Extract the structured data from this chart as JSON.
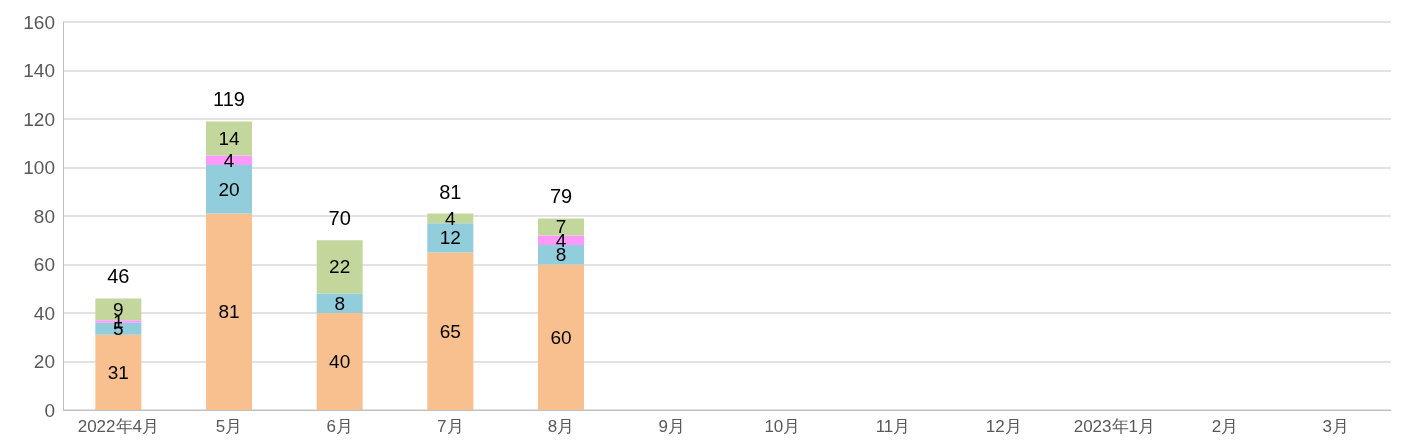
{
  "chart_data": {
    "type": "bar",
    "stacked": true,
    "data_labels": true,
    "grid": "y",
    "categories": [
      "2022年4月",
      "5月",
      "6月",
      "7月",
      "8月",
      "9月",
      "10月",
      "11月",
      "12月",
      "2023年1月",
      "2月",
      "3月"
    ],
    "series": [
      {
        "color": "#f9c08f",
        "values": [
          31,
          81,
          40,
          65,
          60,
          null,
          null,
          null,
          null,
          null,
          null,
          null
        ]
      },
      {
        "color": "#92cddc",
        "values": [
          5,
          20,
          8,
          12,
          8,
          null,
          null,
          null,
          null,
          null,
          null,
          null
        ]
      },
      {
        "color": "#ff99ff",
        "values": [
          1,
          4,
          null,
          null,
          4,
          null,
          null,
          null,
          null,
          null,
          null,
          null
        ]
      },
      {
        "color": "#c3d69b",
        "values": [
          9,
          14,
          22,
          4,
          7,
          null,
          null,
          null,
          null,
          null,
          null,
          null
        ]
      }
    ],
    "totals": [
      "46",
      "119",
      "70",
      "81",
      "79",
      null,
      null,
      null,
      null,
      null,
      null,
      null
    ],
    "ylim": [
      0,
      160
    ],
    "yticks": [
      0,
      20,
      40,
      60,
      80,
      100,
      120,
      140,
      160
    ]
  }
}
